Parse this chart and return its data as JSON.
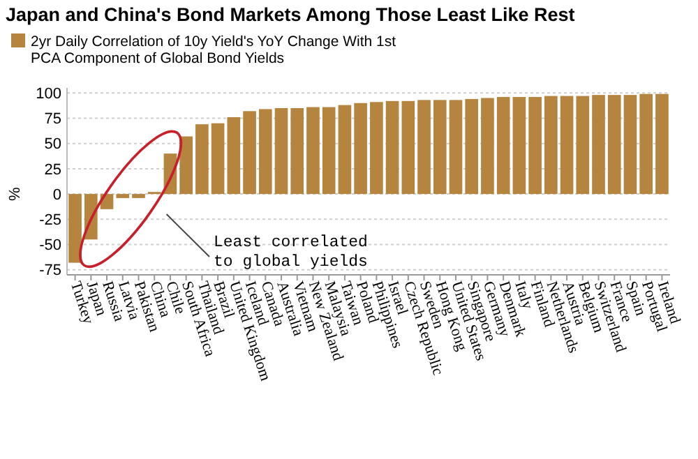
{
  "chart_data": {
    "type": "bar",
    "title": "Japan and China's Bond Markets Among Those Least Like Rest",
    "ylabel": "%",
    "categories": [
      "Turkey",
      "Japan",
      "Russia",
      "Latvia",
      "Pakistan",
      "China",
      "Chile",
      "South Africa",
      "Thailand",
      "Brazil",
      "United Kingdom",
      "Iceland",
      "Canada",
      "Australia",
      "Vietnam",
      "New Zealand",
      "Malaysia",
      "Taiwan",
      "Poland",
      "Philippines",
      "Israel",
      "Czech Republic",
      "Sweden",
      "Hong Kong",
      "United States",
      "Singapore",
      "Germany",
      "Denmark",
      "Italy",
      "Finland",
      "Netherlands",
      "Austria",
      "Belgium",
      "Switzerland",
      "France",
      "Spain",
      "Portugal",
      "Ireland"
    ],
    "series": [
      {
        "name": "2yr Daily Correlation of 10y Yield's YoY Change With 1st PCA Component of Global Bond Yields",
        "color": "#b5843f",
        "values": [
          -68,
          -45,
          -15,
          -4,
          -4,
          2,
          40,
          57,
          69,
          70,
          76,
          82,
          84,
          85,
          85,
          86,
          86,
          88,
          90,
          91,
          92,
          92,
          93,
          93,
          93,
          94,
          95,
          96,
          96,
          96,
          97,
          97,
          97,
          98,
          98,
          98,
          99,
          99
        ]
      }
    ],
    "ylim": [
      -80,
      105
    ],
    "yticks": [
      -75,
      -50,
      -25,
      0,
      25,
      50,
      75,
      100
    ],
    "grid": "y",
    "legend": "top left",
    "annotations": [
      "Least correlated to global yields"
    ]
  }
}
